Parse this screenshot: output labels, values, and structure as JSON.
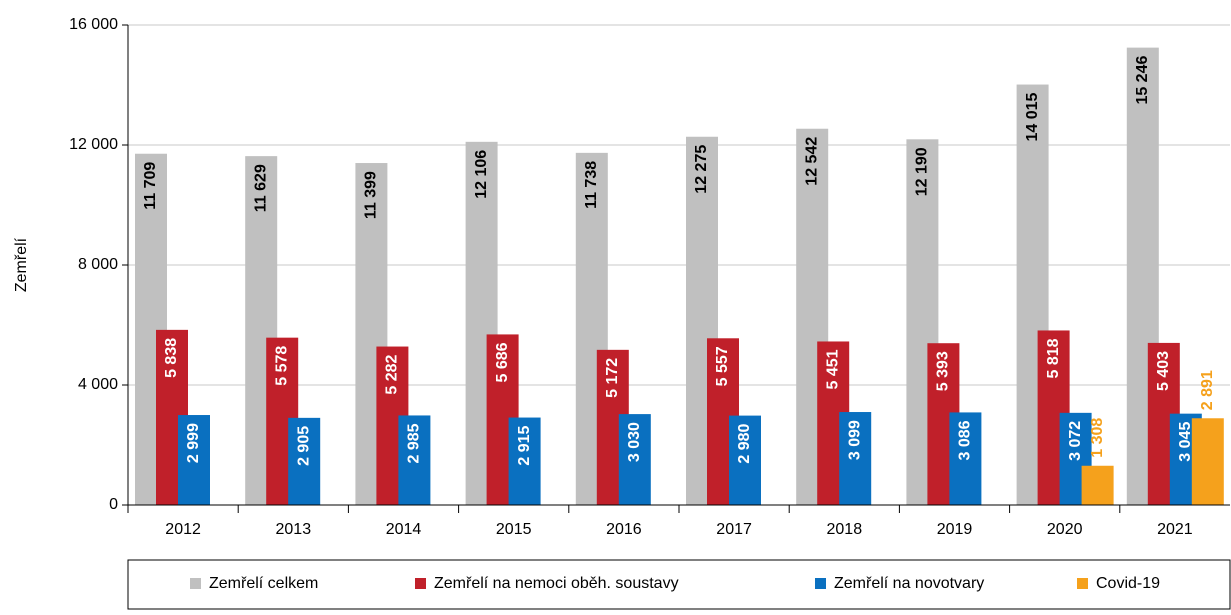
{
  "chart_data": {
    "type": "bar",
    "ylabel": "Zemřelí",
    "categories": [
      "2012",
      "2013",
      "2014",
      "2015",
      "2016",
      "2017",
      "2018",
      "2019",
      "2020",
      "2021"
    ],
    "series": [
      {
        "name": "Zemřelí celkem",
        "color": "#c0c0c0",
        "label_color": "#000000",
        "values": [
          11709,
          11629,
          11399,
          12106,
          11738,
          12275,
          12542,
          12190,
          14015,
          15246
        ],
        "value_labels": [
          "11 709",
          "11 629",
          "11 399",
          "12 106",
          "11 738",
          "12 275",
          "12 542",
          "12 190",
          "14 015",
          "15 246"
        ]
      },
      {
        "name": "Zemřelí na nemoci oběh. soustavy",
        "color": "#c0202a",
        "label_color": "#ffffff",
        "values": [
          5838,
          5578,
          5282,
          5686,
          5172,
          5557,
          5451,
          5393,
          5818,
          5403
        ],
        "value_labels": [
          "5 838",
          "5 578",
          "5 282",
          "5 686",
          "5 172",
          "5 557",
          "5 451",
          "5 393",
          "5 818",
          "5 403"
        ]
      },
      {
        "name": "Zemřelí na novotvary",
        "color": "#0a70c0",
        "label_color": "#ffffff",
        "values": [
          2999,
          2905,
          2985,
          2915,
          3030,
          2980,
          3099,
          3086,
          3072,
          3045
        ],
        "value_labels": [
          "2 999",
          "2 905",
          "2 985",
          "2 915",
          "3 030",
          "2 980",
          "3 099",
          "3 086",
          "3 072",
          "3 045"
        ]
      },
      {
        "name": "Covid-19",
        "color": "#f5a11c",
        "label_color": "#f5a11c",
        "values": [
          null,
          null,
          null,
          null,
          null,
          null,
          null,
          null,
          1308,
          2891
        ],
        "value_labels": [
          null,
          null,
          null,
          null,
          null,
          null,
          null,
          null,
          "1 308",
          "2 891"
        ]
      }
    ],
    "ylim": [
      0,
      16000
    ],
    "yticks": [
      0,
      {
        "value": 4000,
        "label": "4 000"
      },
      {
        "value": 8000,
        "label": "8 000"
      },
      {
        "value": 12000,
        "label": "12 000"
      },
      {
        "value": 16000,
        "label": "16 000"
      }
    ],
    "grid": true,
    "legend": "bottom"
  }
}
